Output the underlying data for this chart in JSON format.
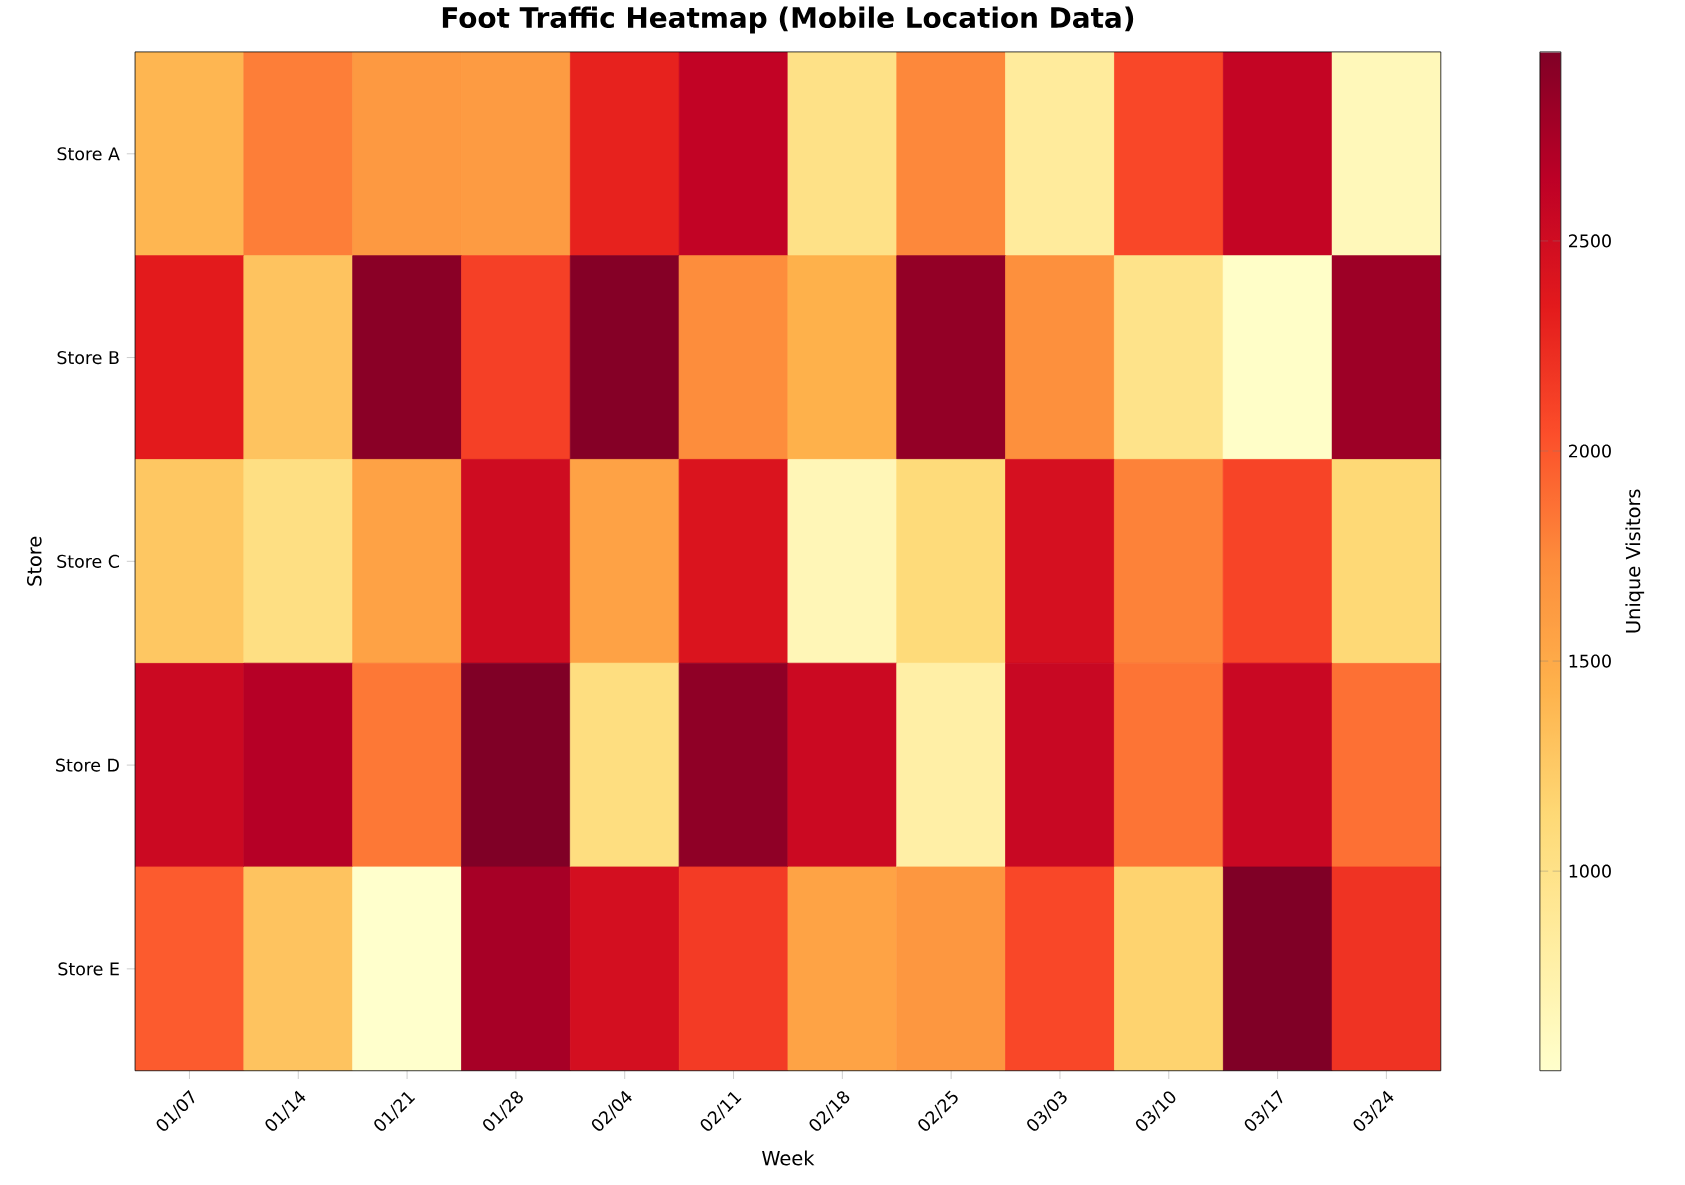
{
  "chart_data": {
    "type": "heatmap",
    "title": "Foot Traffic Heatmap (Mobile Location Data)",
    "xlabel": "Week",
    "ylabel": "Store",
    "clabel": "Unique Visitors",
    "categories": [
      "01/07",
      "01/14",
      "01/21",
      "01/28",
      "02/04",
      "02/11",
      "02/18",
      "02/25",
      "03/03",
      "03/10",
      "03/17",
      "03/24"
    ],
    "y_categories": [
      "Store A",
      "Store B",
      "Store C",
      "Store D",
      "Store E"
    ],
    "cells": [
      [
        1400,
        1810,
        1640,
        1620,
        2300,
        2610,
        1010,
        1760,
        860,
        2080,
        2590,
        650
      ],
      [
        2345,
        1300,
        2900,
        2125,
        2925,
        1740,
        1445,
        2855,
        1710,
        985,
        550,
        2805
      ],
      [
        1275,
        1035,
        1570,
        2510,
        1565,
        2420,
        670,
        1105,
        2460,
        1790,
        2100,
        1130
      ],
      [
        2540,
        2685,
        1840,
        2950,
        1060,
        2875,
        2540,
        790,
        2560,
        1860,
        2550,
        1880
      ],
      [
        1980,
        1300,
        525,
        2755,
        2470,
        2150,
        1560,
        1660,
        2080,
        1180,
        2950,
        2200
      ]
    ],
    "clim": [
      525,
      2950
    ],
    "cticks": [
      1000,
      1500,
      2000,
      2500
    ]
  }
}
